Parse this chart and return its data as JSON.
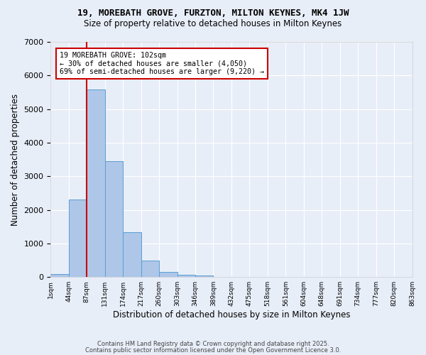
{
  "title1": "19, MOREBATH GROVE, FURZTON, MILTON KEYNES, MK4 1JW",
  "title2": "Size of property relative to detached houses in Milton Keynes",
  "xlabel": "Distribution of detached houses by size in Milton Keynes",
  "ylabel": "Number of detached properties",
  "bin_edges": [
    "1sqm",
    "44sqm",
    "87sqm",
    "131sqm",
    "174sqm",
    "217sqm",
    "260sqm",
    "303sqm",
    "346sqm",
    "389sqm",
    "432sqm",
    "475sqm",
    "518sqm",
    "561sqm",
    "604sqm",
    "648sqm",
    "691sqm",
    "734sqm",
    "777sqm",
    "820sqm",
    "863sqm"
  ],
  "bar_values": [
    80,
    2300,
    5580,
    3450,
    1330,
    480,
    155,
    75,
    55,
    0,
    0,
    0,
    0,
    0,
    0,
    0,
    0,
    0,
    0,
    0
  ],
  "bar_color": "#aec6e8",
  "bar_edge_color": "#5a9fd4",
  "background_color": "#e8eef8",
  "grid_color": "#ffffff",
  "vline_color": "#cc0000",
  "annotation_text": "19 MOREBATH GROVE: 102sqm\n← 30% of detached houses are smaller (4,050)\n69% of semi-detached houses are larger (9,220) →",
  "annotation_box_color": "#ffffff",
  "annotation_box_edge_color": "#cc0000",
  "ylim": [
    0,
    7000
  ],
  "yticks": [
    0,
    1000,
    2000,
    3000,
    4000,
    5000,
    6000,
    7000
  ],
  "footer1": "Contains HM Land Registry data © Crown copyright and database right 2025.",
  "footer2": "Contains public sector information licensed under the Open Government Licence 3.0."
}
